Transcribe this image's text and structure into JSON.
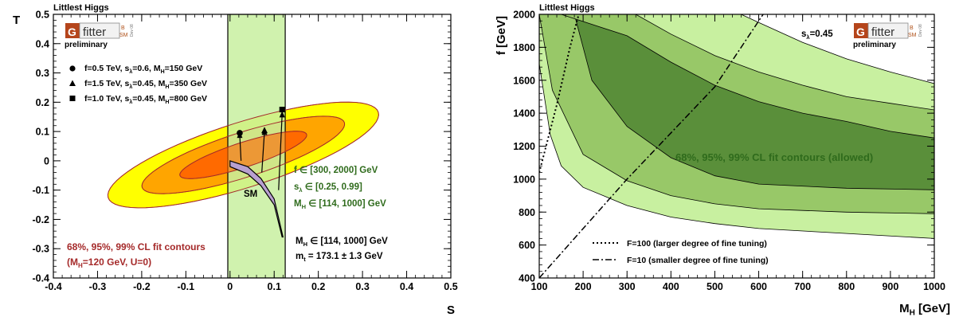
{
  "colors": {
    "ellipse_outer": "#ffff00",
    "ellipse_mid": "#ffa500",
    "ellipse_inner": "#ff6a00",
    "ellipse_line": "#a52a2a",
    "band_s": "#c8f0a0",
    "contour_99": "#c8f0a0",
    "contour_95": "#98c868",
    "contour_68": "#5a8f3a",
    "logo_box": "#b5451b"
  },
  "logo": {
    "g": "G",
    "fitter": "fitter",
    "b": "B",
    "sm": "SM",
    "dev": "Dev 08",
    "preliminary": "preliminary"
  },
  "chart_data": [
    {
      "type": "scatter",
      "title": "Littlest Higgs",
      "xlabel": "S",
      "ylabel": "T",
      "xlim": [
        -0.4,
        0.5
      ],
      "ylim": [
        -0.4,
        0.5
      ],
      "xticks": [
        "-0.4",
        "-0.3",
        "-0.2",
        "-0.1",
        "0",
        "0.1",
        "0.2",
        "0.3",
        "0.4",
        "0.5"
      ],
      "yticks": [
        "-0.4",
        "-0.3",
        "-0.2",
        "-0.1",
        "0",
        "0.1",
        "0.2",
        "0.3",
        "0.4",
        "0.5"
      ],
      "grid": false,
      "ellipses": {
        "center": [
          0.03,
          0.02
        ],
        "angle_deg": 27,
        "outer": {
          "a": 0.34,
          "b": 0.105
        },
        "mid": {
          "a": 0.255,
          "b": 0.072
        },
        "inner": {
          "a": 0.16,
          "b": 0.04
        }
      },
      "s_band": {
        "s_min": -0.005,
        "s_max": 0.125
      },
      "sm_band": {
        "upper": [
          [
            0.0,
            0.0
          ],
          [
            0.04,
            -0.02
          ],
          [
            0.07,
            -0.06
          ],
          [
            0.1,
            -0.13
          ],
          [
            0.12,
            -0.26
          ]
        ],
        "lower": [
          [
            0.0,
            -0.02
          ],
          [
            0.04,
            -0.045
          ],
          [
            0.07,
            -0.085
          ],
          [
            0.1,
            -0.15
          ],
          [
            0.118,
            -0.26
          ]
        ]
      },
      "arrows": [
        {
          "from": [
            0.025,
            0.0
          ],
          "to": [
            0.022,
            0.1
          ]
        },
        {
          "from": [
            0.072,
            -0.04
          ],
          "to": [
            0.078,
            0.11
          ]
        },
        {
          "from": [
            0.11,
            -0.1
          ],
          "to": [
            0.118,
            0.17
          ]
        }
      ],
      "points": [
        {
          "marker": "circle",
          "x": 0.022,
          "y": 0.095
        },
        {
          "marker": "triangle",
          "x": 0.078,
          "y": 0.105
        },
        {
          "marker": "square",
          "x": 0.118,
          "y": 0.175
        }
      ],
      "legend": [
        {
          "marker": "circle",
          "parts": [
            "f=0.5 TeV, s",
            "λ",
            "=0.6, M",
            "H",
            "=150 GeV"
          ]
        },
        {
          "marker": "triangle",
          "parts": [
            "f=1.5 TeV, s",
            "λ",
            "=0.45, M",
            "H",
            "=350 GeV"
          ]
        },
        {
          "marker": "square",
          "parts": [
            "f=1.0 TeV, s",
            "λ",
            "=0.45, M",
            "H",
            "=800 GeV"
          ]
        }
      ],
      "sm_label": "SM",
      "ranges": {
        "f": "f ∈ [300, 2000] GeV",
        "s_prefix": "s",
        "s_sub": "λ",
        "s_suffix": " ∈ [0.25, 0.99]",
        "mh_prefix": "M",
        "mh_sub": "H",
        "mh_suffix": " ∈ [114, 1000] GeV"
      },
      "sm_params": {
        "mh_prefix": "M",
        "mh_sub": "H",
        "mh_suffix": " ∈ [114, 1000] GeV",
        "mt_prefix": "m",
        "mt_sub": "t",
        "mt_suffix": " = 173.1 ± 1.3 GeV"
      },
      "cl_text": {
        "line1": "68%, 95%, 99% CL fit contours",
        "line2_pre": "(M",
        "line2_sub": "H",
        "line2_post": "=120 GeV, U=0)"
      }
    },
    {
      "type": "area",
      "title": "Littlest Higgs",
      "xlabel_main": "M",
      "xlabel_sub": "H",
      "xlabel_unit": " [GeV]",
      "ylabel": "f [GeV]",
      "xlim": [
        100,
        1000
      ],
      "ylim": [
        400,
        2000
      ],
      "xticks": [
        "100",
        "200",
        "300",
        "400",
        "500",
        "600",
        "700",
        "800",
        "900",
        "1000"
      ],
      "yticks": [
        "400",
        "600",
        "800",
        "1000",
        "1200",
        "1400",
        "1600",
        "1800",
        "2000"
      ],
      "grid": false,
      "s_lambda_main": "s",
      "s_lambda_sub": "λ",
      "s_lambda_value": "=0.45",
      "contour_99_lower": [
        [
          100,
          1700
        ],
        [
          125,
          1270
        ],
        [
          150,
          1080
        ],
        [
          200,
          950
        ],
        [
          300,
          840
        ],
        [
          400,
          770
        ],
        [
          500,
          730
        ],
        [
          600,
          700
        ],
        [
          800,
          670
        ],
        [
          1000,
          640
        ]
      ],
      "contour_95_lower": [
        [
          100,
          2000
        ],
        [
          130,
          1540
        ],
        [
          200,
          1150
        ],
        [
          300,
          990
        ],
        [
          400,
          900
        ],
        [
          500,
          850
        ],
        [
          600,
          820
        ],
        [
          800,
          800
        ],
        [
          1000,
          790
        ]
      ],
      "contour_68_lower": [
        [
          180,
          2000
        ],
        [
          220,
          1600
        ],
        [
          300,
          1320
        ],
        [
          400,
          1130
        ],
        [
          500,
          1020
        ],
        [
          600,
          970
        ],
        [
          800,
          945
        ],
        [
          1000,
          935
        ]
      ],
      "contour_68_upper": [
        [
          150,
          2000
        ],
        [
          300,
          1870
        ],
        [
          400,
          1710
        ],
        [
          500,
          1570
        ],
        [
          600,
          1470
        ],
        [
          700,
          1400
        ],
        [
          800,
          1350
        ],
        [
          900,
          1290
        ],
        [
          1000,
          1250
        ]
      ],
      "contour_95_upper": [
        [
          320,
          2000
        ],
        [
          400,
          1880
        ],
        [
          500,
          1750
        ],
        [
          600,
          1650
        ],
        [
          700,
          1570
        ],
        [
          800,
          1500
        ],
        [
          900,
          1460
        ],
        [
          1000,
          1420
        ]
      ],
      "contour_99_upper": [
        [
          560,
          2000
        ],
        [
          600,
          1950
        ],
        [
          700,
          1830
        ],
        [
          800,
          1730
        ],
        [
          900,
          1650
        ],
        [
          1000,
          1580
        ]
      ],
      "fine_tuning_100": [
        [
          100,
          1040
        ],
        [
          140,
          1450
        ],
        [
          170,
          1800
        ],
        [
          190,
          2000
        ]
      ],
      "fine_tuning_10": [
        [
          100,
          400
        ],
        [
          300,
          1000
        ],
        [
          500,
          1560
        ],
        [
          610,
          2000
        ]
      ],
      "allowed_label": "68%, 95%, 99% CL fit contours (allowed)",
      "legend": [
        {
          "style": "dotted",
          "label": "F=100 (larger degree of fine tuning)"
        },
        {
          "style": "dashdot",
          "label": "F=10 (smaller degree of fine tuning)"
        }
      ]
    }
  ]
}
